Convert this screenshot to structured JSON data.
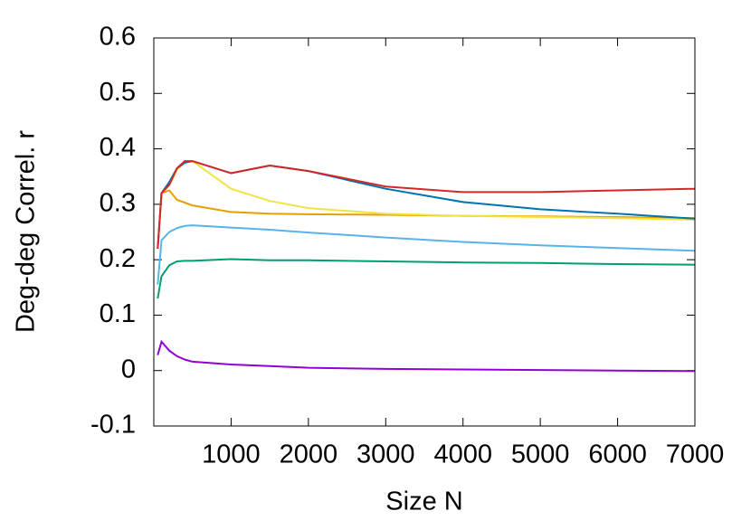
{
  "chart_data": {
    "type": "line",
    "x_label": "Size N",
    "y_label": "Deg-deg Correl. r",
    "x": [
      50,
      100,
      200,
      300,
      400,
      500,
      1000,
      1500,
      2000,
      3000,
      4000,
      5000,
      6000,
      7000
    ],
    "series": [
      {
        "color": "#56b4e9",
        "values": [
          0.155,
          0.235,
          0.25,
          0.257,
          0.261,
          0.262,
          0.258,
          0.254,
          0.249,
          0.24,
          0.232,
          0.226,
          0.221,
          0.216
        ]
      },
      {
        "color": "#009e73",
        "values": [
          0.13,
          0.17,
          0.19,
          0.197,
          0.198,
          0.198,
          0.201,
          0.199,
          0.199,
          0.197,
          0.195,
          0.194,
          0.192,
          0.191
        ]
      },
      {
        "color": "#9400d3",
        "values": [
          0.028,
          0.052,
          0.036,
          0.026,
          0.02,
          0.016,
          0.011,
          0.008,
          0.005,
          0.003,
          0.002,
          0.001,
          0,
          -0.001
        ]
      },
      {
        "color": "#e69f00",
        "values": [
          0.22,
          0.32,
          0.325,
          0.308,
          0.303,
          0.298,
          0.286,
          0.283,
          0.282,
          0.281,
          0.279,
          0.278,
          0.277,
          0.275
        ]
      },
      {
        "color": "#f0e442",
        "values": [
          0.22,
          0.32,
          0.335,
          0.362,
          0.376,
          0.378,
          0.328,
          0.306,
          0.293,
          0.283,
          0.279,
          0.277,
          0.275,
          0.272
        ]
      },
      {
        "color": "#0072b2",
        "values": [
          0.22,
          0.32,
          0.34,
          0.365,
          0.375,
          0.378,
          0.356,
          0.37,
          0.36,
          0.328,
          0.304,
          0.291,
          0.283,
          0.274
        ]
      },
      {
        "color": "#d62728",
        "values": [
          0.22,
          0.32,
          0.335,
          0.365,
          0.378,
          0.378,
          0.356,
          0.37,
          0.36,
          0.332,
          0.322,
          0.322,
          0.325,
          0.328
        ]
      }
    ],
    "xlim": [
      0,
      7000
    ],
    "xticks": [
      1000,
      2000,
      3000,
      4000,
      5000,
      6000,
      7000
    ],
    "ylim": [
      -0.1,
      0.6
    ],
    "yticks": [
      -0.1,
      0,
      0.1,
      0.2,
      0.3,
      0.4,
      0.5,
      0.6
    ]
  }
}
